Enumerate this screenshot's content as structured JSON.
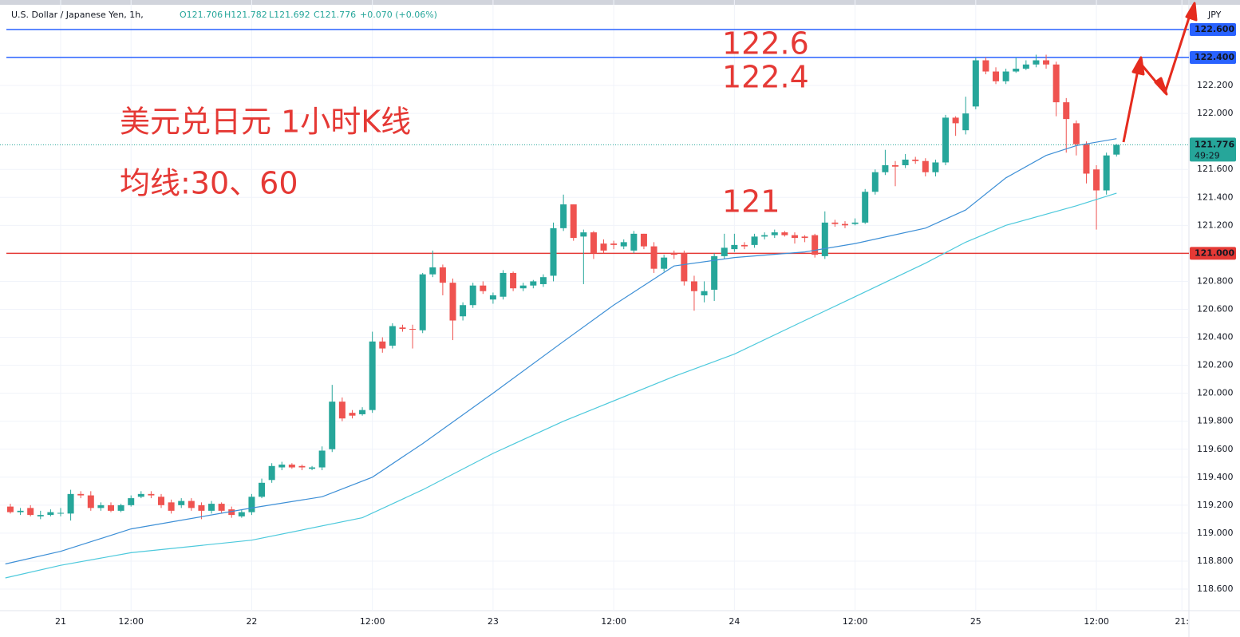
{
  "chart_data": {
    "type": "candlestick",
    "title": "U.S. Dollar / Japanese Yen, 1h,",
    "ohlc_legend": [
      "O121.706",
      "H121.782",
      "L121.692",
      "C121.776",
      "+0.070 (+0.06%)"
    ],
    "currency": "JPY",
    "up_color": "#26a69a",
    "down_color": "#ef5350",
    "open": [
      119.19,
      119.15,
      119.18,
      119.12,
      119.13,
      119.14,
      119.14,
      119.28,
      119.27,
      119.18,
      119.2,
      119.16,
      119.2,
      119.26,
      119.28,
      119.26,
      119.22,
      119.2,
      119.23,
      119.2,
      119.16,
      119.21,
      119.17,
      119.12,
      119.15,
      119.26,
      119.38,
      119.47,
      119.49,
      119.48,
      119.46,
      119.47,
      119.6,
      119.94,
      119.86,
      119.85,
      119.88,
      120.37,
      120.34,
      120.47,
      120.46,
      120.45,
      120.85,
      120.9,
      120.79,
      120.55,
      120.63,
      120.77,
      120.67,
      120.69,
      120.86,
      120.75,
      120.77,
      120.78,
      120.84,
      121.18,
      121.35,
      121.12,
      121.15,
      121.07,
      121.07,
      121.05,
      121.02,
      121.14,
      121.05,
      120.89,
      121.0,
      121.0,
      120.8,
      120.7,
      120.74,
      120.98,
      121.03,
      121.06,
      121.06,
      121.12,
      121.13,
      121.15,
      121.13,
      121.12,
      121.13,
      120.98,
      121.22,
      121.21,
      121.21,
      121.22,
      121.44,
      121.58,
      121.63,
      121.63,
      121.67,
      121.66,
      121.58,
      121.65,
      121.97,
      121.88,
      122.05,
      122.38,
      122.3,
      122.23,
      122.3,
      122.32,
      122.35,
      122.38,
      122.35,
      122.08,
      121.93,
      121.78,
      121.6,
      121.45,
      121.706
    ],
    "high": [
      119.21,
      119.18,
      119.2,
      119.16,
      119.17,
      119.18,
      119.31,
      119.3,
      119.3,
      119.22,
      119.22,
      119.21,
      119.27,
      119.3,
      119.3,
      119.28,
      119.24,
      119.25,
      119.25,
      119.22,
      119.23,
      119.22,
      119.19,
      119.17,
      119.28,
      119.39,
      119.5,
      119.51,
      119.5,
      119.49,
      119.48,
      119.62,
      120.06,
      119.97,
      119.88,
      119.9,
      120.44,
      120.4,
      120.5,
      120.49,
      120.49,
      120.86,
      121.02,
      120.92,
      120.82,
      120.65,
      120.79,
      120.8,
      120.72,
      120.88,
      120.87,
      120.79,
      120.81,
      120.85,
      121.22,
      121.42,
      121.35,
      121.17,
      121.16,
      121.1,
      121.09,
      121.1,
      121.16,
      121.14,
      121.08,
      120.99,
      121.02,
      121.02,
      120.84,
      120.8,
      121.0,
      121.14,
      121.14,
      121.08,
      121.14,
      121.15,
      121.17,
      121.16,
      121.15,
      121.13,
      121.14,
      121.3,
      121.24,
      121.23,
      121.25,
      121.46,
      121.6,
      121.74,
      121.66,
      121.71,
      121.69,
      121.68,
      121.67,
      121.99,
      121.98,
      122.12,
      122.4,
      122.4,
      122.33,
      122.32,
      122.4,
      122.38,
      122.42,
      122.42,
      122.37,
      122.11,
      121.95,
      121.8,
      121.63,
      121.72,
      121.782
    ],
    "low": [
      119.14,
      119.13,
      119.12,
      119.1,
      119.12,
      119.12,
      119.09,
      119.25,
      119.16,
      119.16,
      119.15,
      119.15,
      119.19,
      119.25,
      119.25,
      119.18,
      119.14,
      119.18,
      119.16,
      119.1,
      119.14,
      119.14,
      119.11,
      119.11,
      119.13,
      119.25,
      119.36,
      119.45,
      119.46,
      119.45,
      119.45,
      119.45,
      119.58,
      119.8,
      119.82,
      119.84,
      119.86,
      120.29,
      120.32,
      120.44,
      120.32,
      120.43,
      120.83,
      120.7,
      120.38,
      120.52,
      120.61,
      120.71,
      120.64,
      120.67,
      120.73,
      120.73,
      120.75,
      120.76,
      120.8,
      121.16,
      121.09,
      120.78,
      120.96,
      121.0,
      121.03,
      121.03,
      121.0,
      121.03,
      120.86,
      120.87,
      120.96,
      120.77,
      120.59,
      120.65,
      120.66,
      120.96,
      121.01,
      121.03,
      121.04,
      121.1,
      121.11,
      121.12,
      121.07,
      121.08,
      120.97,
      120.96,
      121.19,
      121.18,
      121.2,
      121.21,
      121.42,
      121.56,
      121.48,
      121.61,
      121.64,
      121.55,
      121.55,
      121.63,
      121.84,
      121.85,
      122.03,
      122.28,
      122.21,
      122.21,
      122.29,
      122.31,
      122.33,
      122.32,
      121.98,
      121.72,
      121.7,
      121.5,
      121.17,
      121.42,
      121.692
    ],
    "close": [
      119.15,
      119.16,
      119.13,
      119.13,
      119.15,
      119.145,
      119.28,
      119.27,
      119.18,
      119.2,
      119.16,
      119.2,
      119.25,
      119.28,
      119.27,
      119.2,
      119.16,
      119.23,
      119.18,
      119.16,
      119.21,
      119.16,
      119.13,
      119.15,
      119.26,
      119.36,
      119.48,
      119.49,
      119.47,
      119.47,
      119.47,
      119.59,
      119.94,
      119.82,
      119.84,
      119.88,
      120.37,
      120.32,
      120.48,
      120.46,
      120.455,
      120.85,
      120.9,
      120.79,
      120.52,
      120.63,
      120.77,
      120.73,
      120.7,
      120.86,
      120.75,
      120.77,
      120.8,
      120.83,
      121.18,
      121.35,
      121.11,
      121.15,
      121.0,
      121.02,
      121.06,
      121.08,
      121.14,
      121.05,
      120.89,
      120.97,
      120.99,
      120.8,
      120.73,
      120.73,
      120.98,
      121.04,
      121.06,
      121.05,
      121.12,
      121.13,
      121.15,
      121.13,
      121.11,
      121.11,
      120.99,
      121.22,
      121.21,
      121.2,
      121.22,
      121.44,
      121.58,
      121.63,
      121.62,
      121.67,
      121.66,
      121.58,
      121.65,
      121.97,
      121.93,
      122.0,
      122.38,
      122.3,
      122.23,
      122.3,
      122.32,
      122.35,
      122.38,
      122.35,
      122.08,
      121.96,
      121.78,
      121.57,
      121.45,
      121.7,
      121.776
    ],
    "moving_averages": [
      {
        "color": "#3d8fd6",
        "x": [
          -0.5,
          5,
          12,
          24,
          31,
          36,
          41,
          48,
          55,
          60,
          66,
          72,
          79,
          84,
          91,
          95,
          99,
          103,
          106,
          110
        ],
        "values": [
          118.78,
          118.87,
          119.03,
          119.18,
          119.26,
          119.4,
          119.64,
          120.0,
          120.37,
          120.63,
          120.91,
          120.97,
          121.01,
          121.07,
          121.18,
          121.31,
          121.54,
          121.7,
          121.77,
          121.82
        ]
      },
      {
        "color": "#4dc9dc",
        "x": [
          -0.5,
          5,
          12,
          24,
          35,
          41,
          48,
          55,
          66,
          72,
          79,
          84,
          91,
          95,
          99,
          106,
          110
        ],
        "values": [
          118.68,
          118.77,
          118.86,
          118.95,
          119.11,
          119.31,
          119.57,
          119.8,
          120.12,
          120.28,
          120.52,
          120.69,
          120.93,
          121.08,
          121.2,
          121.34,
          121.43
        ]
      }
    ],
    "xlim": [
      -1.03,
      117.2
    ],
    "xticks": [
      {
        "value": 5,
        "label": "21"
      },
      {
        "value": 12,
        "label": "12:00"
      },
      {
        "value": 24,
        "label": "22"
      },
      {
        "value": 36,
        "label": "12:00"
      },
      {
        "value": 48,
        "label": "23"
      },
      {
        "value": 60,
        "label": "12:00"
      },
      {
        "value": 72,
        "label": "24"
      },
      {
        "value": 84,
        "label": "12:00"
      },
      {
        "value": 96,
        "label": "25"
      },
      {
        "value": 108,
        "label": "12:00"
      },
      {
        "value": 116.5,
        "label": "21:"
      }
    ],
    "ylim": [
      118.446,
      122.811
    ],
    "yticks": [
      {
        "value": 118.6,
        "label": "118.600"
      },
      {
        "value": 118.8,
        "label": "118.800"
      },
      {
        "value": 119.0,
        "label": "119.000"
      },
      {
        "value": 119.2,
        "label": "119.200"
      },
      {
        "value": 119.4,
        "label": "119.400"
      },
      {
        "value": 119.6,
        "label": "119.600"
      },
      {
        "value": 119.8,
        "label": "119.800"
      },
      {
        "value": 120.0,
        "label": "120.000"
      },
      {
        "value": 120.2,
        "label": "120.200"
      },
      {
        "value": 120.4,
        "label": "120.400"
      },
      {
        "value": 120.6,
        "label": "120.600"
      },
      {
        "value": 120.8,
        "label": "120.800"
      },
      {
        "value": 121.2,
        "label": "121.200"
      },
      {
        "value": 121.4,
        "label": "121.400"
      },
      {
        "value": 121.6,
        "label": "121.600"
      },
      {
        "value": 122.0,
        "label": "122.000"
      },
      {
        "value": 122.2,
        "label": "122.200"
      }
    ],
    "grid": true,
    "hlines": [
      {
        "value": 122.6,
        "label": "122.600",
        "color": "#2962ff"
      },
      {
        "value": 122.4,
        "label": "122.400",
        "color": "#2962ff"
      },
      {
        "value": 121.0,
        "label": "121.000",
        "color": "#e53935"
      }
    ],
    "current_price": {
      "value": 121.776,
      "label": "121.776",
      "countdown": "49:29"
    },
    "annotations": [
      "美元兑日元 1小时K线",
      "均线:30、60",
      "122.6",
      "122.4",
      "121"
    ]
  }
}
